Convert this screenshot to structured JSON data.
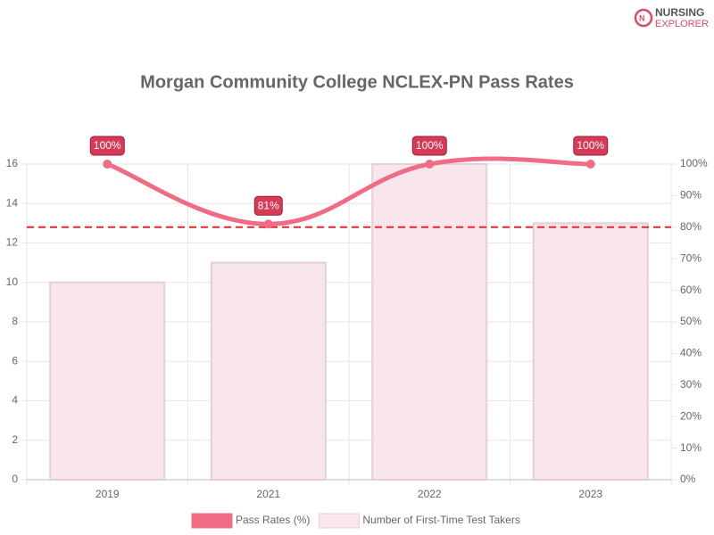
{
  "logo": {
    "line1": "NURSING",
    "line2": "EXPLORER"
  },
  "chart_data": {
    "type": "bar-line",
    "title": "Morgan Community College NCLEX-PN Pass Rates",
    "categories": [
      "2019",
      "2021",
      "2022",
      "2023"
    ],
    "series": [
      {
        "name": "Pass Rates (%)",
        "type": "line",
        "axis": "y2",
        "color": "#f06b84",
        "values": [
          100,
          81,
          100,
          100
        ],
        "value_labels": [
          "100%",
          "81%",
          "100%",
          "100%"
        ]
      },
      {
        "name": "Number of First-Time Test Takers",
        "type": "bar",
        "axis": "y",
        "color": "#f9e6ec",
        "values": [
          10,
          11,
          16,
          13
        ]
      }
    ],
    "reference_line": {
      "axis": "y2",
      "value": 80,
      "color": "#e3262f"
    },
    "ylim": [
      0,
      16
    ],
    "yticks": [
      0,
      2,
      4,
      6,
      8,
      10,
      12,
      14,
      16
    ],
    "y2lim": [
      0,
      100
    ],
    "y2ticks": [
      {
        "value": 0,
        "label": "0%"
      },
      {
        "value": 10,
        "label": "10%"
      },
      {
        "value": 20,
        "label": "20%"
      },
      {
        "value": 30,
        "label": "30%"
      },
      {
        "value": 40,
        "label": "40%"
      },
      {
        "value": 50,
        "label": "50%"
      },
      {
        "value": 60,
        "label": "60%"
      },
      {
        "value": 70,
        "label": "70%"
      },
      {
        "value": 80,
        "label": "80%"
      },
      {
        "value": 90,
        "label": "90%"
      },
      {
        "value": 100,
        "label": "100%"
      }
    ],
    "grid": true,
    "legend": "bottom"
  }
}
